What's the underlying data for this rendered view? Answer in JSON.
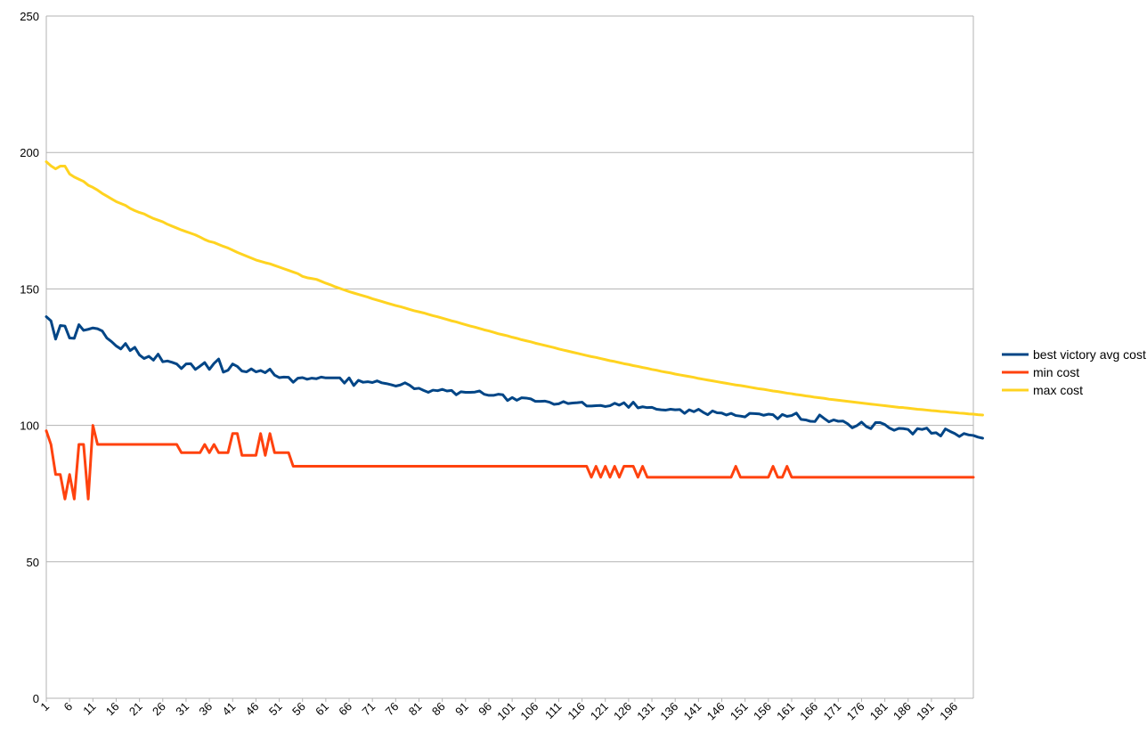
{
  "chart_data": {
    "type": "line",
    "title": "",
    "xlabel": "",
    "ylabel": "",
    "ylim": [
      0,
      250
    ],
    "yticks": [
      0,
      50,
      100,
      150,
      200,
      250
    ],
    "x_start": 1,
    "x_count": 200,
    "x_tick_step": 5,
    "grid": true,
    "legend_position": "right",
    "series": [
      {
        "name": "best victory avg cost",
        "color": "#004586",
        "values": [
          139.8,
          138.3,
          131.6,
          136.6,
          136.4,
          132.0,
          131.9,
          136.9,
          134.8,
          135.2,
          135.7,
          135.4,
          134.6,
          132.0,
          130.7,
          129.1,
          128.0,
          130.0,
          127.4,
          128.6,
          125.8,
          124.5,
          125.3,
          123.9,
          126.1,
          123.3,
          123.6,
          123.1,
          122.5,
          120.8,
          122.5,
          122.6,
          120.5,
          121.7,
          123.0,
          120.5,
          122.7,
          124.3,
          119.5,
          120.2,
          122.5,
          121.6,
          119.9,
          119.6,
          120.7,
          119.6,
          120.1,
          119.3,
          120.6,
          118.4,
          117.5,
          117.7,
          117.6,
          115.8,
          117.3,
          117.5,
          116.9,
          117.3,
          117.1,
          117.7,
          117.4,
          117.4,
          117.4,
          117.4,
          115.5,
          117.4,
          114.6,
          116.5,
          115.8,
          116.0,
          115.7,
          116.3,
          115.6,
          115.3,
          114.9,
          114.4,
          114.8,
          115.6,
          114.7,
          113.4,
          113.6,
          112.8,
          112.1,
          112.9,
          112.7,
          113.2,
          112.6,
          112.8,
          111.2,
          112.3,
          112.1,
          112.1,
          112.2,
          112.6,
          111.4,
          111.0,
          111.0,
          111.4,
          111.2,
          109.1,
          110.2,
          109.2,
          110.1,
          110.0,
          109.7,
          108.8,
          108.8,
          108.9,
          108.5,
          107.7,
          107.9,
          108.7,
          108.0,
          108.2,
          108.3,
          108.5,
          107.1,
          107.1,
          107.2,
          107.3,
          106.9,
          107.2,
          108.1,
          107.4,
          108.3,
          106.6,
          108.5,
          106.4,
          106.8,
          106.5,
          106.6,
          105.9,
          105.7,
          105.6,
          105.9,
          105.7,
          105.8,
          104.4,
          105.7,
          105.0,
          105.9,
          104.8,
          103.9,
          105.3,
          104.6,
          104.5,
          103.8,
          104.4,
          103.6,
          103.4,
          103.1,
          104.4,
          104.3,
          104.2,
          103.7,
          104.1,
          103.9,
          102.4,
          104.0,
          103.3,
          103.6,
          104.5,
          102.2,
          102.0,
          101.5,
          101.4,
          103.8,
          102.5,
          101.3,
          102.0,
          101.5,
          101.6,
          100.6,
          99.1,
          99.9,
          101.2,
          99.6,
          98.8,
          101.0,
          101.0,
          100.3,
          99.0,
          98.2,
          98.9,
          98.8,
          98.5,
          96.8,
          98.8,
          98.5,
          99.0,
          97.1,
          97.3,
          96.1,
          98.7,
          97.8,
          97.0,
          95.9,
          97.0,
          96.5,
          96.3,
          95.7,
          95.3
        ]
      },
      {
        "name": "min cost",
        "color": "#ff420e",
        "values": [
          98,
          93,
          82,
          82,
          73,
          82,
          73,
          93,
          93,
          73,
          100,
          93,
          93,
          93,
          93,
          93,
          93,
          93,
          93,
          93,
          93,
          93,
          93,
          93,
          93,
          93,
          93,
          93,
          93,
          90,
          90,
          90,
          90,
          90,
          93,
          90,
          93,
          90,
          90,
          90,
          97,
          97,
          89,
          89,
          89,
          89,
          97,
          89,
          97,
          90,
          90,
          90,
          90,
          85,
          85,
          85,
          85,
          85,
          85,
          85,
          85,
          85,
          85,
          85,
          85,
          85,
          85,
          85,
          85,
          85,
          85,
          85,
          85,
          85,
          85,
          85,
          85,
          85,
          85,
          85,
          85,
          85,
          85,
          85,
          85,
          85,
          85,
          85,
          85,
          85,
          85,
          85,
          85,
          85,
          85,
          85,
          85,
          85,
          85,
          85,
          85,
          85,
          85,
          85,
          85,
          85,
          85,
          85,
          85,
          85,
          85,
          85,
          85,
          85,
          85,
          85,
          85,
          81,
          85,
          81,
          85,
          81,
          85,
          81,
          85,
          85,
          85,
          81,
          85,
          81,
          81,
          81,
          81,
          81,
          81,
          81,
          81,
          81,
          81,
          81,
          81,
          81,
          81,
          81,
          81,
          81,
          81,
          81,
          85,
          81,
          81,
          81,
          81,
          81,
          81,
          81,
          85,
          81,
          81,
          85,
          81,
          81,
          81,
          81,
          81,
          81,
          81,
          81,
          81,
          81,
          81,
          81,
          81,
          81,
          81,
          81,
          81,
          81,
          81,
          81,
          81,
          81,
          81,
          81,
          81,
          81,
          81,
          81,
          81,
          81,
          81,
          81,
          81,
          81,
          81,
          81,
          81,
          81,
          81,
          81
        ]
      },
      {
        "name": "max cost",
        "color": "#ffd320",
        "values": [
          196.6,
          195.1,
          194.0,
          195.0,
          195.0,
          192.1,
          191.0,
          190.2,
          189.4,
          188.0,
          187.2,
          186.2,
          185.0,
          184.0,
          183.0,
          182.0,
          181.3,
          180.6,
          179.5,
          178.7,
          178.0,
          177.5,
          176.6,
          175.8,
          175.2,
          174.6,
          173.7,
          173.0,
          172.3,
          171.6,
          171.0,
          170.4,
          169.8,
          169.0,
          168.1,
          167.4,
          167.0,
          166.3,
          165.6,
          165.0,
          164.2,
          163.4,
          162.7,
          162.0,
          161.3,
          160.6,
          160.1,
          159.6,
          159.2,
          158.6,
          158.0,
          157.4,
          156.8,
          156.2,
          155.6,
          154.6,
          154.1,
          153.8,
          153.5,
          152.8,
          152.1,
          151.5,
          150.8,
          150.2,
          149.6,
          149.0,
          148.5,
          148.0,
          147.5,
          147.0,
          146.4,
          145.9,
          145.4,
          144.9,
          144.4,
          143.9,
          143.5,
          143.0,
          142.5,
          142.0,
          141.6,
          141.2,
          140.7,
          140.2,
          139.8,
          139.3,
          138.8,
          138.3,
          137.9,
          137.4,
          136.9,
          136.4,
          136.0,
          135.5,
          135.0,
          134.6,
          134.1,
          133.6,
          133.2,
          132.8,
          132.3,
          131.9,
          131.4,
          131.0,
          130.6,
          130.1,
          129.7,
          129.3,
          128.9,
          128.5,
          128.0,
          127.6,
          127.2,
          126.8,
          126.4,
          126.0,
          125.6,
          125.2,
          124.9,
          124.5,
          124.1,
          123.7,
          123.4,
          123.0,
          122.6,
          122.3,
          121.9,
          121.6,
          121.2,
          120.9,
          120.5,
          120.2,
          119.8,
          119.5,
          119.2,
          118.8,
          118.5,
          118.2,
          117.9,
          117.6,
          117.2,
          116.9,
          116.6,
          116.3,
          116.0,
          115.7,
          115.4,
          115.1,
          114.8,
          114.6,
          114.3,
          114.0,
          113.7,
          113.4,
          113.2,
          112.9,
          112.6,
          112.4,
          112.1,
          111.8,
          111.6,
          111.3,
          111.1,
          110.8,
          110.6,
          110.3,
          110.1,
          109.9,
          109.6,
          109.4,
          109.2,
          109.0,
          108.8,
          108.6,
          108.4,
          108.2,
          108.0,
          107.8,
          107.6,
          107.4,
          107.2,
          107.0,
          106.8,
          106.6,
          106.5,
          106.3,
          106.1,
          105.9,
          105.8,
          105.6,
          105.4,
          105.3,
          105.1,
          105.0,
          104.8,
          104.7,
          104.5,
          104.4,
          104.2,
          104.1,
          103.9,
          103.8
        ]
      }
    ]
  }
}
